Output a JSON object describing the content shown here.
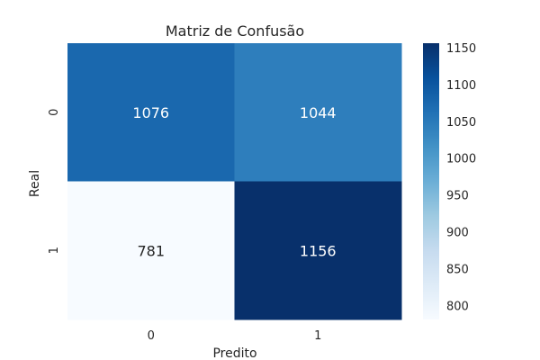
{
  "chart_data": {
    "type": "heatmap",
    "title": "Matriz de Confusão",
    "xlabel": "Predito",
    "ylabel": "Real",
    "x_categories": [
      "0",
      "1"
    ],
    "y_categories": [
      "0",
      "1"
    ],
    "values": [
      [
        1076,
        1044
      ],
      [
        781,
        1156
      ]
    ],
    "colorbar": {
      "min": 781,
      "max": 1156,
      "ticks": [
        800,
        850,
        900,
        950,
        1000,
        1050,
        1100,
        1150
      ],
      "colormap": "Blues"
    },
    "annotate": true,
    "grid": false
  },
  "colors": {
    "colormap_stops": [
      "#f7fbff",
      "#deebf7",
      "#c6dbef",
      "#9ecae1",
      "#6baed6",
      "#4292c6",
      "#2171b5",
      "#08519c",
      "#08306b"
    ],
    "dark_text": "#262626",
    "light_text": "#ffffff"
  }
}
